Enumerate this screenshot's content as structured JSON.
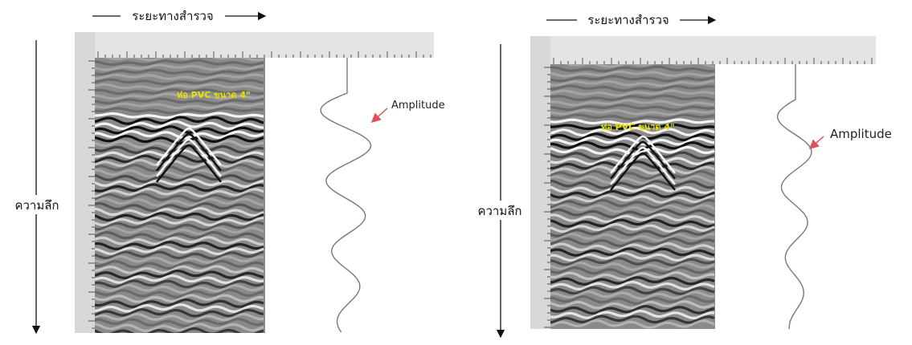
{
  "left": {
    "distance_label": "ระยะทางสำรวจ",
    "depth_label": "ความลึก",
    "amplitude_label": "Amplitude",
    "target_label": "ท่อ PVC ขนาด 4\""
  },
  "right": {
    "distance_label": "ระยะทางสำรวจ",
    "depth_label": "ความลึก",
    "amplitude_label": "Amplitude",
    "target_label": "ท่อ PVC ขนาด 4\""
  }
}
